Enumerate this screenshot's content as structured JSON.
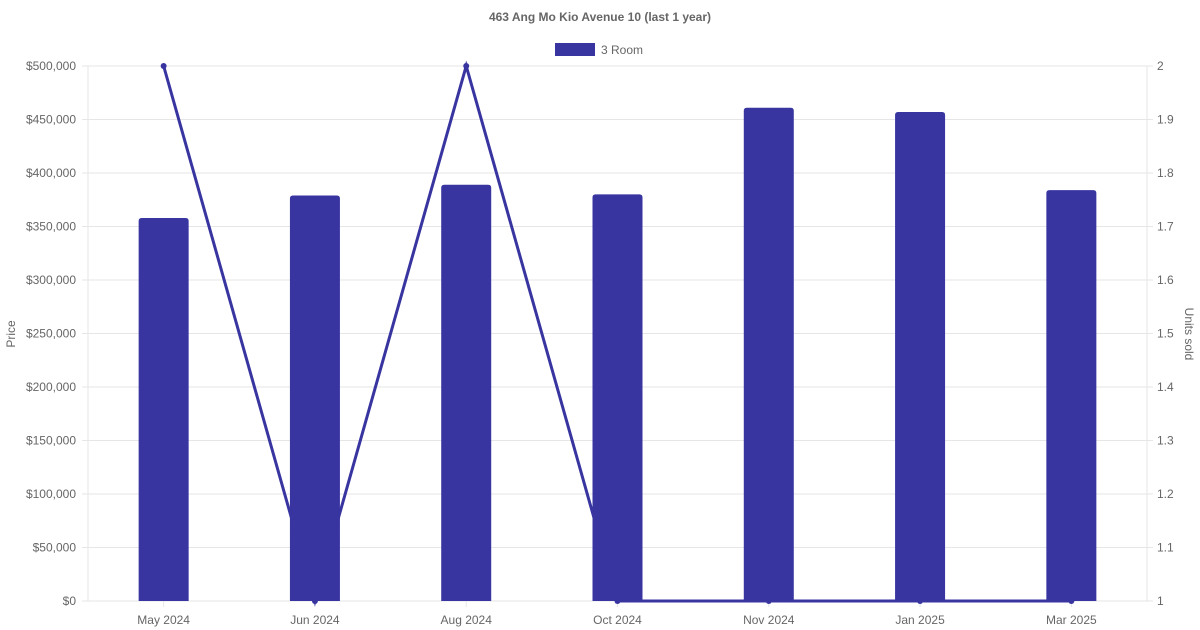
{
  "chart_data": {
    "type": "bar",
    "title": "463 Ang Mo Kio Avenue 10 (last 1 year)",
    "categories": [
      "May 2024",
      "Jun 2024",
      "Aug 2024",
      "Oct 2024",
      "Nov 2024",
      "Jan 2025",
      "Mar 2025"
    ],
    "series": [
      {
        "name": "3 Room",
        "type": "bar",
        "axis": "left",
        "values": [
          358000,
          379000,
          389000,
          380000,
          461000,
          457000,
          384000
        ]
      },
      {
        "type": "line",
        "axis": "right",
        "values": [
          2,
          1,
          2,
          1,
          1,
          1,
          1
        ]
      }
    ],
    "y_left": {
      "label": "Price",
      "min": 0,
      "max": 500000,
      "step": 50000,
      "ticks": [
        "$0",
        "$50,000",
        "$100,000",
        "$150,000",
        "$200,000",
        "$250,000",
        "$300,000",
        "$350,000",
        "$400,000",
        "$450,000",
        "$500,000"
      ]
    },
    "y_right": {
      "label": "Units sold",
      "min": 1,
      "max": 2,
      "step": 0.1,
      "ticks": [
        "1",
        "1.1",
        "1.2",
        "1.3",
        "1.4",
        "1.5",
        "1.6",
        "1.7",
        "1.8",
        "1.9",
        "2"
      ]
    },
    "legend_position": "top",
    "grid": true,
    "colors": {
      "bar": "#3835a0",
      "line": "#3835a0",
      "grid": "#e6e6e6",
      "text": "#666666"
    }
  }
}
